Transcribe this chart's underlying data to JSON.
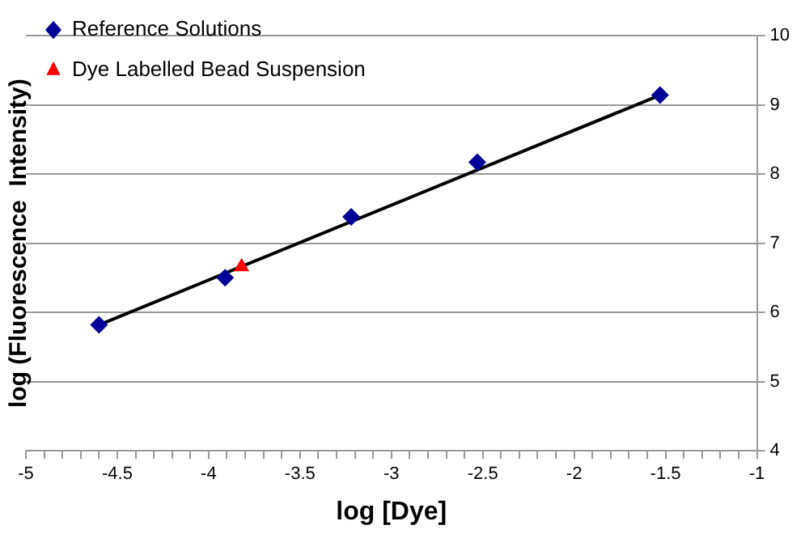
{
  "chart_data": {
    "type": "scatter",
    "xlabel": "log [Dye]",
    "ylabel": "log (Fluorescence  Intensity)",
    "series": [
      {
        "name": "Reference Solutions",
        "color": "#000099",
        "marker": "diamond",
        "x": [
          -4.6,
          -3.91,
          -3.22,
          -2.53,
          -1.53
        ],
        "values": [
          5.82,
          6.5,
          7.38,
          8.17,
          9.14
        ]
      },
      {
        "name": "Dye Labelled Bead Suspension",
        "color": "#ff0000",
        "marker": "triangle",
        "x": [
          -3.82
        ],
        "values": [
          6.66
        ]
      },
      {
        "type": "line",
        "color": "#000000",
        "marker": "none",
        "x": [
          -4.6,
          -1.53
        ],
        "values": [
          5.82,
          9.14
        ]
      }
    ],
    "xlim": [
      -5,
      -1
    ],
    "ylim": [
      4,
      10
    ],
    "xticks": [
      -5,
      {
        "value": -4.9,
        "label": null
      },
      {
        "value": -4.8,
        "label": null
      },
      {
        "value": -4.7,
        "label": null
      },
      {
        "value": -4.6,
        "label": null
      },
      -4.5,
      {
        "value": -4.4,
        "label": null
      },
      {
        "value": -4.3,
        "label": null
      },
      {
        "value": -4.2,
        "label": null
      },
      {
        "value": -4.1,
        "label": null
      },
      -4,
      {
        "value": -3.9,
        "label": null
      },
      {
        "value": -3.8,
        "label": null
      },
      {
        "value": -3.7,
        "label": null
      },
      {
        "value": -3.6,
        "label": null
      },
      -3.5,
      {
        "value": -3.4,
        "label": null
      },
      {
        "value": -3.3,
        "label": null
      },
      {
        "value": -3.2,
        "label": null
      },
      {
        "value": -3.1,
        "label": null
      },
      -3,
      {
        "value": -2.9,
        "label": null
      },
      {
        "value": -2.8,
        "label": null
      },
      {
        "value": -2.7,
        "label": null
      },
      {
        "value": -2.6,
        "label": null
      },
      -2.5,
      {
        "value": -2.4,
        "label": null
      },
      {
        "value": -2.3,
        "label": null
      },
      {
        "value": -2.2,
        "label": null
      },
      {
        "value": -2.1,
        "label": null
      },
      -2,
      {
        "value": -1.9,
        "label": null
      },
      {
        "value": -1.8,
        "label": null
      },
      {
        "value": -1.7,
        "label": null
      },
      {
        "value": -1.6,
        "label": null
      },
      -1.5,
      {
        "value": -1.4,
        "label": null
      },
      {
        "value": -1.3,
        "label": null
      },
      {
        "value": -1.2,
        "label": null
      },
      {
        "value": -1.1,
        "label": null
      },
      -1
    ],
    "yticks": [
      4,
      5,
      6,
      7,
      8,
      9,
      10
    ],
    "grid": "y",
    "legend": "top left"
  }
}
